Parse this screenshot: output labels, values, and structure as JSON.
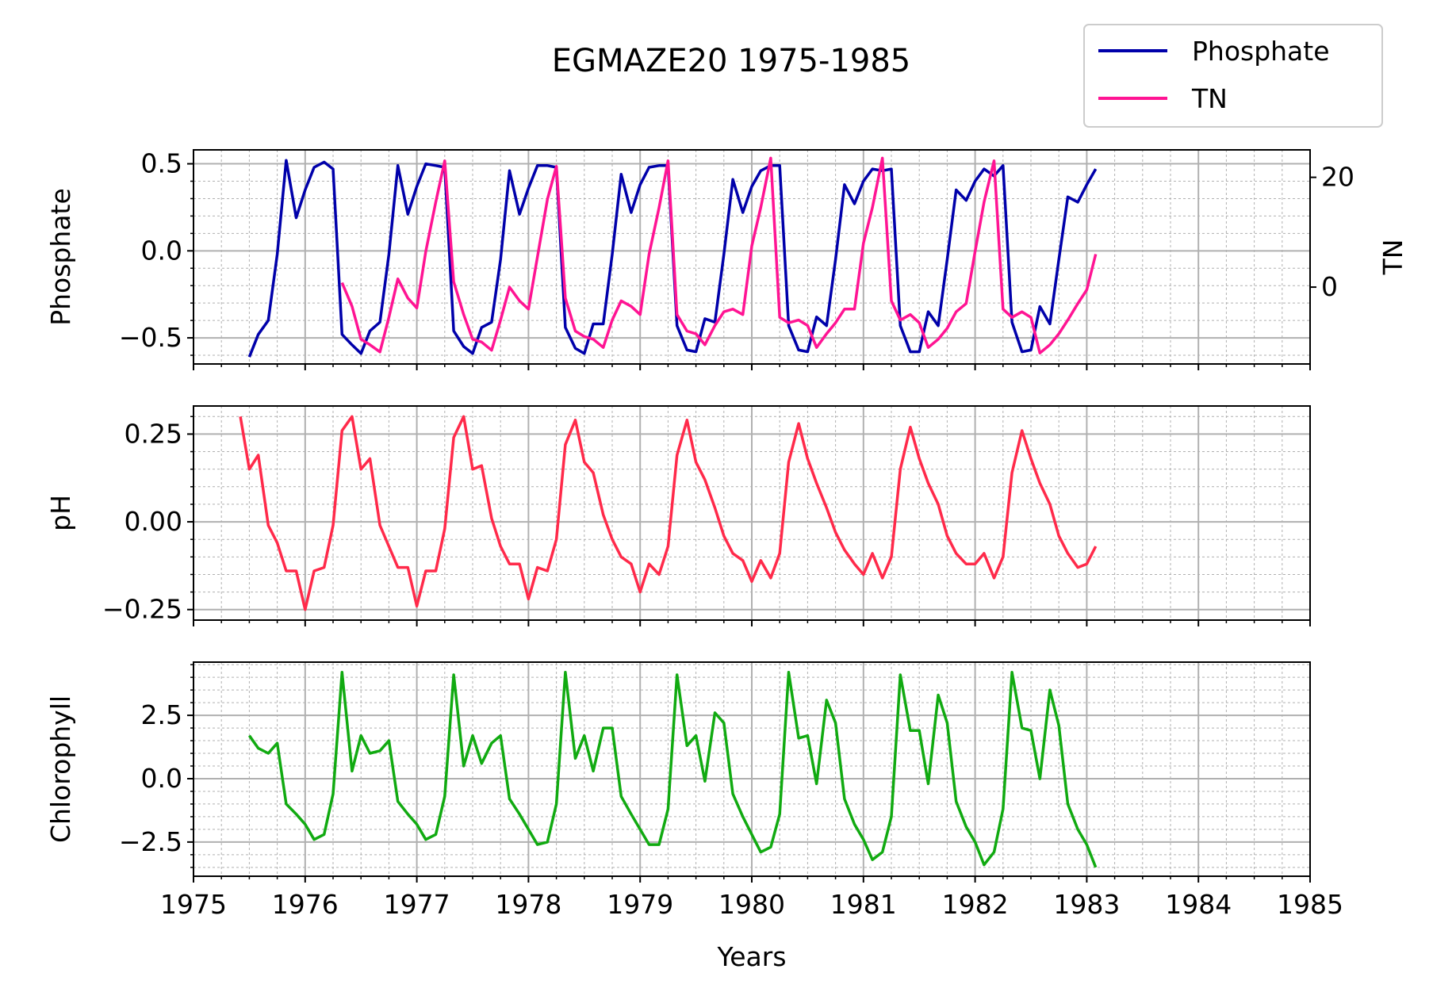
{
  "chart_data": {
    "type": "line",
    "title": "EGMAZE20 1975-1985",
    "xlabel": "Years",
    "x_ticks": [
      "1975",
      "1976",
      "1977",
      "1978",
      "1979",
      "1980",
      "1981",
      "1982",
      "1983",
      "1984",
      "1985"
    ],
    "xlim": [
      1975,
      1985
    ],
    "grid": true,
    "legend": {
      "placement": "top-right",
      "entries": [
        {
          "label": "Phosphate",
          "color": "#0000aa"
        },
        {
          "label": "TN",
          "color": "#ff1493"
        }
      ]
    },
    "panels": [
      {
        "ylabel": "Phosphate",
        "ylim": [
          -0.65,
          0.58
        ],
        "y_ticks": [
          "0.5",
          "0.0",
          "−0.5"
        ],
        "y_tick_values": [
          0.5,
          0.0,
          -0.5
        ],
        "right_axis": {
          "ylabel": "TN",
          "ylim": [
            -14,
            25
          ],
          "y_ticks": [
            "20",
            "0"
          ],
          "y_tick_values": [
            20,
            0
          ]
        },
        "series": [
          {
            "name": "Phosphate",
            "axis": "left",
            "color": "#0000aa",
            "x": [
              1975.5,
              1975.58,
              1975.67,
              1975.75,
              1975.83,
              1975.92,
              1976.0,
              1976.08,
              1976.17,
              1976.25,
              1976.33,
              1976.42,
              1976.5,
              1976.58,
              1976.67,
              1976.75,
              1976.83,
              1976.92,
              1977.0,
              1977.08,
              1977.17,
              1977.25,
              1977.33,
              1977.42,
              1977.5,
              1977.58,
              1977.67,
              1977.75,
              1977.83,
              1977.92,
              1978.0,
              1978.08,
              1978.17,
              1978.25,
              1978.33,
              1978.42,
              1978.5,
              1978.58,
              1978.67,
              1978.75,
              1978.83,
              1978.92,
              1979.0,
              1979.08,
              1979.17,
              1979.25,
              1979.33,
              1979.42,
              1979.5,
              1979.58,
              1979.67,
              1979.75,
              1979.83,
              1979.92,
              1980.0,
              1980.08,
              1980.17,
              1980.25,
              1980.33,
              1980.42,
              1980.5,
              1980.58,
              1980.67,
              1980.75,
              1980.83,
              1980.92,
              1981.0,
              1981.08,
              1981.17,
              1981.25,
              1981.33,
              1981.42,
              1981.5,
              1981.58,
              1981.67,
              1981.75,
              1981.83,
              1981.92,
              1982.0,
              1982.08,
              1982.17,
              1982.25,
              1982.33,
              1982.42,
              1982.5,
              1982.58,
              1982.67,
              1982.75,
              1982.83,
              1982.92,
              1983.0,
              1983.08
            ],
            "y": [
              -0.61,
              -0.48,
              -0.4,
              -0.02,
              0.52,
              0.19,
              0.35,
              0.48,
              0.51,
              0.47,
              -0.48,
              -0.54,
              -0.59,
              -0.46,
              -0.41,
              -0.02,
              0.49,
              0.21,
              0.37,
              0.5,
              0.49,
              0.48,
              -0.46,
              -0.55,
              -0.59,
              -0.44,
              -0.41,
              -0.05,
              0.46,
              0.21,
              0.36,
              0.49,
              0.49,
              0.48,
              -0.44,
              -0.56,
              -0.59,
              -0.42,
              -0.42,
              -0.02,
              0.44,
              0.22,
              0.38,
              0.48,
              0.49,
              0.49,
              -0.43,
              -0.57,
              -0.58,
              -0.39,
              -0.41,
              -0.02,
              0.41,
              0.22,
              0.37,
              0.46,
              0.49,
              0.49,
              -0.43,
              -0.57,
              -0.58,
              -0.38,
              -0.43,
              -0.05,
              0.38,
              0.27,
              0.4,
              0.47,
              0.46,
              0.47,
              -0.43,
              -0.58,
              -0.58,
              -0.35,
              -0.43,
              -0.05,
              0.35,
              0.29,
              0.4,
              0.47,
              0.43,
              0.49,
              -0.41,
              -0.58,
              -0.57,
              -0.32,
              -0.42,
              -0.05,
              0.31,
              0.28,
              0.38,
              0.47
            ]
          },
          {
            "name": "TN",
            "axis": "right",
            "color": "#ff1493",
            "x": [
              1976.33,
              1976.42,
              1976.5,
              1976.58,
              1976.67,
              1976.75,
              1976.83,
              1976.92,
              1977.0,
              1977.08,
              1977.17,
              1977.25,
              1977.33,
              1977.42,
              1977.5,
              1977.58,
              1977.67,
              1977.75,
              1977.83,
              1977.92,
              1978.0,
              1978.08,
              1978.17,
              1978.25,
              1978.33,
              1978.42,
              1978.5,
              1978.58,
              1978.67,
              1978.75,
              1978.83,
              1978.92,
              1979.0,
              1979.08,
              1979.17,
              1979.25,
              1979.33,
              1979.42,
              1979.5,
              1979.58,
              1979.67,
              1979.75,
              1979.83,
              1979.92,
              1980.0,
              1980.08,
              1980.17,
              1980.25,
              1980.33,
              1980.42,
              1980.5,
              1980.58,
              1980.67,
              1980.75,
              1980.83,
              1980.92,
              1981.0,
              1981.08,
              1981.17,
              1981.25,
              1981.33,
              1981.42,
              1981.5,
              1981.58,
              1981.67,
              1981.75,
              1981.83,
              1981.92,
              1982.0,
              1982.08,
              1982.17,
              1982.25,
              1982.33,
              1982.42,
              1982.5,
              1982.58,
              1982.67,
              1982.75,
              1982.83,
              1982.92,
              1983.0,
              1983.08
            ],
            "y": [
              0.8,
              -3.5,
              -9.5,
              -10.5,
              -11.8,
              -5.5,
              1.5,
              -2.0,
              -3.8,
              6.5,
              15.5,
              23.0,
              1.0,
              -5.0,
              -9.5,
              -10.0,
              -11.5,
              -6.0,
              0.0,
              -2.5,
              -4.0,
              5.5,
              16.0,
              22.0,
              -2.0,
              -8.0,
              -9.0,
              -9.5,
              -11.0,
              -6.0,
              -2.5,
              -3.5,
              -5.0,
              6.0,
              14.5,
              23.0,
              -5.0,
              -8.0,
              -8.5,
              -10.5,
              -7.0,
              -4.5,
              -4.0,
              -5.0,
              7.5,
              14.5,
              23.5,
              -5.5,
              -6.5,
              -6.0,
              -7.0,
              -11.0,
              -8.5,
              -6.5,
              -4.0,
              -4.0,
              8.0,
              14.5,
              23.5,
              -2.5,
              -6.0,
              -5.0,
              -6.5,
              -11.0,
              -9.5,
              -7.5,
              -4.5,
              -3.0,
              6.5,
              15.5,
              23.0,
              -4.0,
              -5.5,
              -4.5,
              -5.5,
              -12.0,
              -10.5,
              -8.5,
              -6.0,
              -3.0,
              -0.5,
              6.0
            ]
          }
        ]
      },
      {
        "ylabel": "pH",
        "ylim": [
          -0.28,
          0.33
        ],
        "y_ticks": [
          "0.25",
          "0.00",
          "−0.25"
        ],
        "y_tick_values": [
          0.25,
          0.0,
          -0.25
        ],
        "series": [
          {
            "name": "pH",
            "axis": "left",
            "color": "#ff2a4a",
            "x": [
              1975.42,
              1975.5,
              1975.58,
              1975.67,
              1975.75,
              1975.83,
              1975.92,
              1976.0,
              1976.08,
              1976.17,
              1976.25,
              1976.33,
              1976.42,
              1976.5,
              1976.58,
              1976.67,
              1976.75,
              1976.83,
              1976.92,
              1977.0,
              1977.08,
              1977.17,
              1977.25,
              1977.33,
              1977.42,
              1977.5,
              1977.58,
              1977.67,
              1977.75,
              1977.83,
              1977.92,
              1978.0,
              1978.08,
              1978.17,
              1978.25,
              1978.33,
              1978.42,
              1978.5,
              1978.58,
              1978.67,
              1978.75,
              1978.83,
              1978.92,
              1979.0,
              1979.08,
              1979.17,
              1979.25,
              1979.33,
              1979.42,
              1979.5,
              1979.58,
              1979.67,
              1979.75,
              1979.83,
              1979.92,
              1980.0,
              1980.08,
              1980.17,
              1980.25,
              1980.33,
              1980.42,
              1980.5,
              1980.58,
              1980.67,
              1980.75,
              1980.83,
              1980.92,
              1981.0,
              1981.08,
              1981.17,
              1981.25,
              1981.33,
              1981.42,
              1981.5,
              1981.58,
              1981.67,
              1981.75,
              1981.83,
              1981.92,
              1982.0,
              1982.08,
              1982.17,
              1982.25,
              1982.33,
              1982.42,
              1982.5,
              1982.58,
              1982.67,
              1982.75,
              1982.83,
              1982.92,
              1983.0,
              1983.08
            ],
            "y": [
              0.3,
              0.15,
              0.19,
              -0.01,
              -0.06,
              -0.14,
              -0.14,
              -0.25,
              -0.14,
              -0.13,
              -0.01,
              0.26,
              0.3,
              0.15,
              0.18,
              -0.01,
              -0.07,
              -0.13,
              -0.13,
              -0.24,
              -0.14,
              -0.14,
              -0.02,
              0.24,
              0.3,
              0.15,
              0.16,
              0.01,
              -0.07,
              -0.12,
              -0.12,
              -0.22,
              -0.13,
              -0.14,
              -0.05,
              0.22,
              0.29,
              0.17,
              0.14,
              0.02,
              -0.05,
              -0.1,
              -0.12,
              -0.2,
              -0.12,
              -0.15,
              -0.07,
              0.19,
              0.29,
              0.17,
              0.12,
              0.04,
              -0.04,
              -0.09,
              -0.11,
              -0.17,
              -0.11,
              -0.16,
              -0.09,
              0.17,
              0.28,
              0.18,
              0.11,
              0.04,
              -0.03,
              -0.08,
              -0.12,
              -0.15,
              -0.09,
              -0.16,
              -0.1,
              0.15,
              0.27,
              0.18,
              0.11,
              0.05,
              -0.04,
              -0.09,
              -0.12,
              -0.12,
              -0.09,
              -0.16,
              -0.1,
              0.14,
              0.26,
              0.18,
              0.11,
              0.05,
              -0.04,
              -0.09,
              -0.13,
              -0.12,
              -0.07
            ]
          }
        ]
      },
      {
        "ylabel": "Chlorophyll",
        "ylim": [
          -3.85,
          4.6
        ],
        "y_ticks": [
          "2.5",
          "0.0",
          "−2.5"
        ],
        "y_tick_values": [
          2.5,
          0.0,
          -2.5
        ],
        "series": [
          {
            "name": "Chlorophyll",
            "axis": "left",
            "color": "#11aa11",
            "x": [
              1975.5,
              1975.58,
              1975.67,
              1975.75,
              1975.83,
              1975.92,
              1976.0,
              1976.08,
              1976.17,
              1976.25,
              1976.33,
              1976.42,
              1976.5,
              1976.58,
              1976.67,
              1976.75,
              1976.83,
              1976.92,
              1977.0,
              1977.08,
              1977.17,
              1977.25,
              1977.33,
              1977.42,
              1977.5,
              1977.58,
              1977.67,
              1977.75,
              1977.83,
              1977.92,
              1978.0,
              1978.08,
              1978.17,
              1978.25,
              1978.33,
              1978.42,
              1978.5,
              1978.58,
              1978.67,
              1978.75,
              1978.83,
              1978.92,
              1979.0,
              1979.08,
              1979.17,
              1979.25,
              1979.33,
              1979.42,
              1979.5,
              1979.58,
              1979.67,
              1979.75,
              1979.83,
              1979.92,
              1980.0,
              1980.08,
              1980.17,
              1980.25,
              1980.33,
              1980.42,
              1980.5,
              1980.58,
              1980.67,
              1980.75,
              1980.83,
              1980.92,
              1981.0,
              1981.08,
              1981.17,
              1981.25,
              1981.33,
              1981.42,
              1981.5,
              1981.58,
              1981.67,
              1981.75,
              1981.83,
              1981.92,
              1982.0,
              1982.08,
              1982.17,
              1982.25,
              1982.33,
              1982.42,
              1982.5,
              1982.58,
              1982.67,
              1982.75,
              1982.83,
              1982.92,
              1983.0,
              1983.08
            ],
            "y": [
              1.7,
              1.2,
              1.0,
              1.4,
              -1.0,
              -1.4,
              -1.8,
              -2.4,
              -2.2,
              -0.6,
              4.2,
              0.3,
              1.7,
              1.0,
              1.1,
              1.5,
              -0.9,
              -1.4,
              -1.8,
              -2.4,
              -2.2,
              -0.7,
              4.1,
              0.5,
              1.7,
              0.6,
              1.4,
              1.7,
              -0.8,
              -1.4,
              -2.0,
              -2.6,
              -2.5,
              -1.0,
              4.2,
              0.8,
              1.7,
              0.3,
              2.0,
              2.0,
              -0.7,
              -1.4,
              -2.0,
              -2.6,
              -2.6,
              -1.2,
              4.1,
              1.3,
              1.7,
              -0.1,
              2.6,
              2.2,
              -0.6,
              -1.5,
              -2.2,
              -2.9,
              -2.7,
              -1.4,
              4.2,
              1.6,
              1.7,
              -0.2,
              3.1,
              2.2,
              -0.8,
              -1.8,
              -2.4,
              -3.2,
              -2.9,
              -1.5,
              4.1,
              1.9,
              1.9,
              -0.2,
              3.3,
              2.2,
              -0.9,
              -1.9,
              -2.5,
              -3.4,
              -2.9,
              -1.2,
              4.2,
              2.0,
              1.9,
              0.0,
              3.5,
              2.1,
              -1.0,
              -2.0,
              -2.6,
              -3.5
            ]
          }
        ]
      }
    ]
  }
}
